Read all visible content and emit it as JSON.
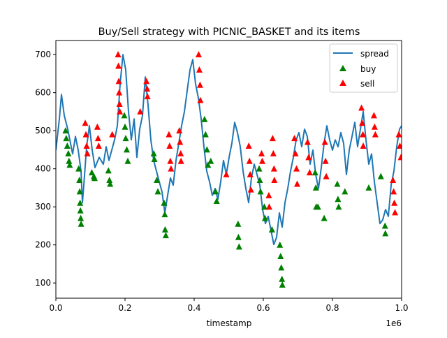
{
  "chart_data": {
    "type": "line",
    "title": "Buy/Sell strategy with PICNIC_BASKET and its items",
    "xlabel": "timestamp",
    "ylabel": "",
    "x_offset_label": "1e6",
    "xlim": [
      0,
      1000000
    ],
    "ylim": [
      60,
      737
    ],
    "xticks": [
      0,
      200000,
      400000,
      600000,
      800000,
      1000000
    ],
    "xtick_labels": [
      "0.0",
      "0.2",
      "0.4",
      "0.6",
      "0.8",
      "1.0"
    ],
    "yticks": [
      100,
      200,
      300,
      400,
      500,
      600,
      700
    ],
    "ytick_labels": [
      "100",
      "200",
      "300",
      "400",
      "500",
      "600",
      "700"
    ],
    "grid": false,
    "legend_position": "top-right",
    "series": [
      {
        "name": "spread",
        "kind": "line",
        "color": "#1f77b4",
        "x": [
          0,
          10100,
          16200,
          24200,
          34300,
          40400,
          48500,
          56600,
          64600,
          72700,
          76800,
          80800,
          88900,
          97000,
          105100,
          113100,
          125300,
          137400,
          145500,
          153500,
          161600,
          169700,
          177800,
          185900,
          193900,
          202000,
          210100,
          218200,
          226300,
          234300,
          242400,
          250500,
          258600,
          266700,
          274700,
          282800,
          290900,
          299000,
          307100,
          315200,
          323200,
          331300,
          339400,
          347500,
          355600,
          363600,
          371700,
          379800,
          387900,
          396000,
          404000,
          412100,
          420200,
          428300,
          436400,
          444400,
          452500,
          460600,
          468700,
          476800,
          484800,
          492900,
          501000,
          509100,
          517200,
          525300,
          533300,
          541400,
          549500,
          557600,
          565700,
          573700,
          581800,
          589900,
          598000,
          606100,
          614100,
          622200,
          630300,
          638400,
          646500,
          654500,
          662600,
          670700,
          678800,
          686900,
          694900,
          703000,
          711100,
          719200,
          727300,
          735400,
          743400,
          751500,
          759600,
          767700,
          775800,
          783800,
          791900,
          800000,
          808100,
          816200,
          824200,
          832300,
          840400,
          848500,
          856600,
          864600,
          872700,
          880800,
          888900,
          897000,
          905100,
          913100,
          921200,
          929300,
          937400,
          945500,
          953500,
          961600,
          969700,
          977800,
          985900,
          993900,
          1000000
        ],
        "y": [
          449,
          531,
          595,
          540,
          504,
          476,
          439,
          485,
          449,
          394,
          311,
          357,
          458,
          513,
          449,
          403,
          430,
          412,
          458,
          422,
          449,
          476,
          513,
          623,
          700,
          660,
          550,
          476,
          531,
          430,
          504,
          540,
          641,
          567,
          476,
          422,
          394,
          366,
          339,
          284,
          330,
          376,
          357,
          422,
          467,
          513,
          550,
          605,
          660,
          687,
          623,
          586,
          531,
          458,
          394,
          366,
          330,
          348,
          320,
          366,
          422,
          385,
          430,
          467,
          522,
          495,
          458,
          394,
          348,
          311,
          376,
          412,
          385,
          357,
          293,
          256,
          275,
          238,
          201,
          220,
          284,
          247,
          311,
          348,
          394,
          430,
          476,
          495,
          458,
          504,
          485,
          412,
          449,
          385,
          348,
          403,
          467,
          513,
          476,
          449,
          476,
          458,
          495,
          467,
          385,
          449,
          485,
          522,
          458,
          504,
          550,
          476,
          412,
          439,
          366,
          311,
          256,
          266,
          293,
          275,
          357,
          394,
          458,
          504,
          513
        ]
      },
      {
        "name": "buy",
        "kind": "marker",
        "marker": "triangle-up",
        "color": "#008000",
        "points": [
          [
            28000,
            500
          ],
          [
            30000,
            480
          ],
          [
            33000,
            460
          ],
          [
            36000,
            440
          ],
          [
            38000,
            420
          ],
          [
            40000,
            410
          ],
          [
            66000,
            400
          ],
          [
            68000,
            370
          ],
          [
            69000,
            340
          ],
          [
            70000,
            310
          ],
          [
            71000,
            290
          ],
          [
            72000,
            270
          ],
          [
            73000,
            255
          ],
          [
            104000,
            390
          ],
          [
            110000,
            380
          ],
          [
            112000,
            375
          ],
          [
            152000,
            395
          ],
          [
            155000,
            370
          ],
          [
            157000,
            360
          ],
          [
            198000,
            540
          ],
          [
            200000,
            510
          ],
          [
            202000,
            480
          ],
          [
            205000,
            450
          ],
          [
            208000,
            420
          ],
          [
            283000,
            440
          ],
          [
            285000,
            425
          ],
          [
            292000,
            370
          ],
          [
            295000,
            340
          ],
          [
            313000,
            310
          ],
          [
            315000,
            280
          ],
          [
            316000,
            240
          ],
          [
            318000,
            225
          ],
          [
            430000,
            530
          ],
          [
            433000,
            490
          ],
          [
            437000,
            450
          ],
          [
            440000,
            410
          ],
          [
            448000,
            420
          ],
          [
            462000,
            340
          ],
          [
            465000,
            315
          ],
          [
            527000,
            255
          ],
          [
            528000,
            220
          ],
          [
            530000,
            195
          ],
          [
            588000,
            400
          ],
          [
            590000,
            370
          ],
          [
            592000,
            340
          ],
          [
            603000,
            300
          ],
          [
            605000,
            270
          ],
          [
            625000,
            240
          ],
          [
            648000,
            200
          ],
          [
            650000,
            170
          ],
          [
            652000,
            140
          ],
          [
            654000,
            110
          ],
          [
            655000,
            95
          ],
          [
            750000,
            390
          ],
          [
            752000,
            350
          ],
          [
            753000,
            300
          ],
          [
            758000,
            300
          ],
          [
            776000,
            270
          ],
          [
            814000,
            360
          ],
          [
            816000,
            320
          ],
          [
            818000,
            300
          ],
          [
            836000,
            340
          ],
          [
            905000,
            350
          ],
          [
            940000,
            380
          ],
          [
            952000,
            250
          ],
          [
            953000,
            230
          ]
        ]
      },
      {
        "name": "sell",
        "kind": "marker",
        "marker": "triangle-up",
        "color": "#ff0000",
        "points": [
          [
            85000,
            520
          ],
          [
            87000,
            490
          ],
          [
            89000,
            460
          ],
          [
            91000,
            440
          ],
          [
            120000,
            510
          ],
          [
            122000,
            480
          ],
          [
            124000,
            460
          ],
          [
            163000,
            490
          ],
          [
            180000,
            700
          ],
          [
            181000,
            670
          ],
          [
            182000,
            630
          ],
          [
            183000,
            600
          ],
          [
            184000,
            570
          ],
          [
            185000,
            550
          ],
          [
            244000,
            550
          ],
          [
            262000,
            630
          ],
          [
            264000,
            610
          ],
          [
            265000,
            590
          ],
          [
            327000,
            490
          ],
          [
            329000,
            460
          ],
          [
            331000,
            420
          ],
          [
            333000,
            400
          ],
          [
            357000,
            500
          ],
          [
            359000,
            470
          ],
          [
            361000,
            440
          ],
          [
            362000,
            420
          ],
          [
            413000,
            700
          ],
          [
            415000,
            660
          ],
          [
            417000,
            620
          ],
          [
            418000,
            580
          ],
          [
            493000,
            385
          ],
          [
            558000,
            460
          ],
          [
            560000,
            420
          ],
          [
            562000,
            385
          ],
          [
            564000,
            345
          ],
          [
            595000,
            440
          ],
          [
            597000,
            420
          ],
          [
            616000,
            330
          ],
          [
            617000,
            300
          ],
          [
            627000,
            480
          ],
          [
            629000,
            440
          ],
          [
            631000,
            400
          ],
          [
            632000,
            370
          ],
          [
            690000,
            480
          ],
          [
            693000,
            440
          ],
          [
            696000,
            400
          ],
          [
            698000,
            360
          ],
          [
            728000,
            470
          ],
          [
            731000,
            430
          ],
          [
            734000,
            390
          ],
          [
            778000,
            470
          ],
          [
            780000,
            420
          ],
          [
            782000,
            380
          ],
          [
            884000,
            560
          ],
          [
            886000,
            520
          ],
          [
            888000,
            490
          ],
          [
            889000,
            460
          ],
          [
            920000,
            540
          ],
          [
            922000,
            510
          ],
          [
            924000,
            490
          ],
          [
            975000,
            370
          ],
          [
            977000,
            340
          ],
          [
            979000,
            310
          ],
          [
            981000,
            285
          ],
          [
            992000,
            490
          ],
          [
            995000,
            460
          ],
          [
            998000,
            430
          ]
        ]
      }
    ]
  }
}
